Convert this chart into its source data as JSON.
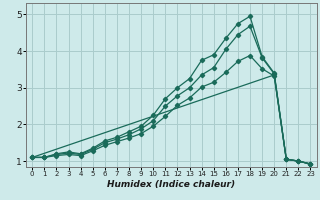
{
  "xlabel": "Humidex (Indice chaleur)",
  "bg_color": "#ceeaea",
  "grid_color": "#aacccc",
  "line_color": "#1a6b5a",
  "xlim": [
    -0.5,
    23.5
  ],
  "ylim": [
    0.85,
    5.3
  ],
  "xticks": [
    0,
    1,
    2,
    3,
    4,
    5,
    6,
    7,
    8,
    9,
    10,
    11,
    12,
    13,
    14,
    15,
    16,
    17,
    18,
    19,
    20,
    21,
    22,
    23
  ],
  "yticks": [
    1,
    2,
    3,
    4,
    5
  ],
  "curve1_x": [
    0,
    1,
    2,
    3,
    4,
    5,
    6,
    7,
    8,
    9,
    10,
    11,
    12,
    13,
    14,
    15,
    16,
    17,
    18,
    19,
    20,
    21,
    22,
    23
  ],
  "curve1_y": [
    1.1,
    1.1,
    1.2,
    1.25,
    1.2,
    1.35,
    1.55,
    1.65,
    1.8,
    1.95,
    2.25,
    2.7,
    3.0,
    3.25,
    3.75,
    3.9,
    4.35,
    4.75,
    4.95,
    3.85,
    3.4,
    1.05,
    1.0,
    0.92
  ],
  "curve2_x": [
    0,
    1,
    2,
    3,
    4,
    5,
    6,
    7,
    8,
    9,
    10,
    11,
    12,
    13,
    14,
    15,
    16,
    17,
    18,
    19,
    20,
    21,
    22,
    23
  ],
  "curve2_y": [
    1.1,
    1.1,
    1.18,
    1.22,
    1.18,
    1.32,
    1.5,
    1.6,
    1.72,
    1.88,
    2.1,
    2.5,
    2.78,
    3.0,
    3.35,
    3.55,
    4.05,
    4.45,
    4.68,
    3.82,
    3.38,
    1.05,
    1.0,
    0.92
  ],
  "curve3_x": [
    0,
    1,
    2,
    3,
    4,
    5,
    6,
    7,
    8,
    9,
    10,
    11,
    12,
    13,
    14,
    15,
    16,
    17,
    18,
    19,
    20,
    21,
    22,
    23
  ],
  "curve3_y": [
    1.1,
    1.1,
    1.15,
    1.18,
    1.15,
    1.28,
    1.43,
    1.53,
    1.63,
    1.75,
    1.95,
    2.22,
    2.52,
    2.72,
    3.02,
    3.15,
    3.42,
    3.72,
    3.88,
    3.52,
    3.32,
    1.05,
    1.0,
    0.92
  ],
  "straight_x": [
    0,
    20,
    21,
    22,
    23
  ],
  "straight_y": [
    1.1,
    3.35,
    1.05,
    1.0,
    0.92
  ]
}
